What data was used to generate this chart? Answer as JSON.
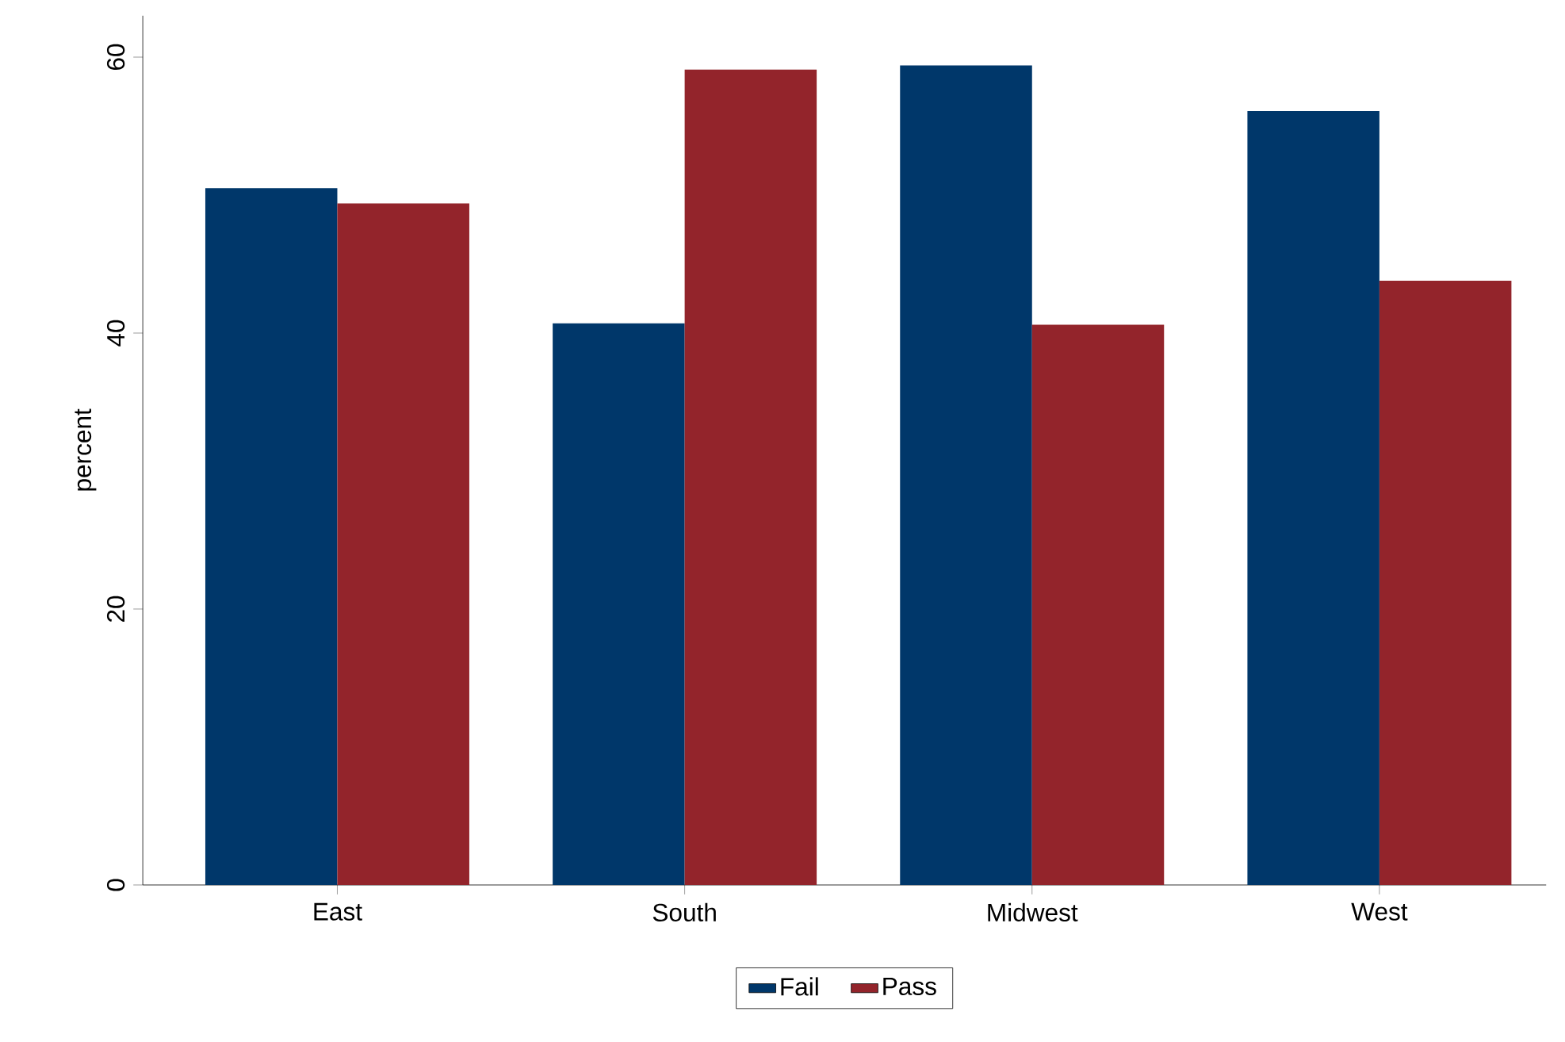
{
  "chart_data": {
    "type": "bar",
    "ylabel": "percent",
    "categories": [
      "East",
      "South",
      "Midwest",
      "West"
    ],
    "series": [
      {
        "name": "Fail",
        "color": "#00376a",
        "values": [
          50.5,
          40.7,
          59.4,
          56.1
        ]
      },
      {
        "name": "Pass",
        "color": "#93242b",
        "values": [
          49.4,
          59.1,
          40.6,
          43.8
        ]
      }
    ],
    "ylim": [
      0,
      63
    ],
    "yticks": [
      0,
      20,
      40,
      60
    ],
    "grid": false,
    "legend": "bottom"
  }
}
